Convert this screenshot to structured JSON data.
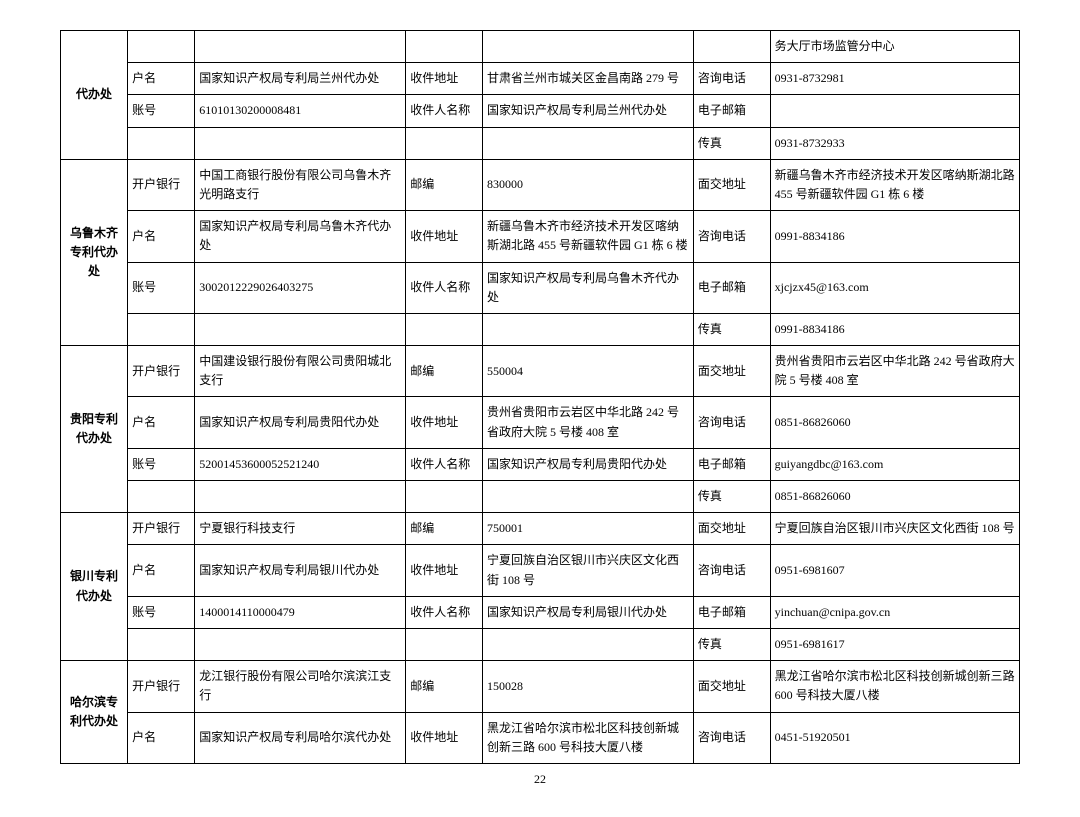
{
  "labels": {
    "bank": "开户银行",
    "accountName": "户名",
    "accountNo": "账号",
    "postcode": "邮编",
    "recvAddr": "收件地址",
    "recvName": "收件人名称",
    "inPersonAddr": "面交地址",
    "consultPhone": "咨询电话",
    "email": "电子邮箱",
    "fax": "传真"
  },
  "offices": [
    {
      "name": "代办处",
      "topRight": "务大厅市场监管分中心",
      "accountName": "国家知识产权局专利局兰州代办处",
      "accountNo": "61010130200008481",
      "recvAddr": "甘肃省兰州市城关区金昌南路 279 号",
      "recvName": "国家知识产权局专利局兰州代办处",
      "consultPhone": "0931-8732981",
      "fax": "0931-8732933"
    },
    {
      "name": "乌鲁木齐专利代办处",
      "bank": "中国工商银行股份有限公司乌鲁木齐光明路支行",
      "accountName": "国家知识产权局专利局乌鲁木齐代办处",
      "accountNo": "3002012229026403275",
      "postcode": "830000",
      "recvAddr": "新疆乌鲁木齐市经济技术开发区喀纳斯湖北路 455 号新疆软件园 G1 栋 6 楼",
      "recvName": "国家知识产权局专利局乌鲁木齐代办处",
      "inPersonAddr": "新疆乌鲁木齐市经济技术开发区喀纳斯湖北路 455 号新疆软件园 G1 栋 6 楼",
      "consultPhone": "0991-8834186",
      "email": "xjcjzx45@163.com",
      "fax": "0991-8834186"
    },
    {
      "name": "贵阳专利代办处",
      "bank": "中国建设银行股份有限公司贵阳城北支行",
      "accountName": "国家知识产权局专利局贵阳代办处",
      "accountNo": "52001453600052521240",
      "postcode": "550004",
      "recvAddr": "贵州省贵阳市云岩区中华北路 242 号省政府大院 5 号楼 408 室",
      "recvName": "国家知识产权局专利局贵阳代办处",
      "inPersonAddr": "贵州省贵阳市云岩区中华北路 242 号省政府大院 5 号楼 408 室",
      "consultPhone": "0851-86826060",
      "email": "guiyangdbc@163.com",
      "fax": "0851-86826060"
    },
    {
      "name": "银川专利代办处",
      "bank": "宁夏银行科技支行",
      "accountName": "国家知识产权局专利局银川代办处",
      "accountNo": "1400014110000479",
      "postcode": "750001",
      "recvAddr": "宁夏回族自治区银川市兴庆区文化西街 108 号",
      "recvName": "国家知识产权局专利局银川代办处",
      "inPersonAddr": "宁夏回族自治区银川市兴庆区文化西街 108 号",
      "consultPhone": "0951-6981607",
      "email": "yinchuan@cnipa.gov.cn",
      "fax": "0951-6981617"
    },
    {
      "name": "哈尔滨专利代办处",
      "bank": "龙江银行股份有限公司哈尔滨滨江支行",
      "accountName": "国家知识产权局专利局哈尔滨代办处",
      "postcode": "150028",
      "recvAddr": "黑龙江省哈尔滨市松北区科技创新城创新三路 600 号科技大厦八楼",
      "inPersonAddr": "黑龙江省哈尔滨市松北区科技创新城创新三路 600 号科技大厦八楼",
      "consultPhone": "0451-51920501"
    }
  ],
  "pageNumber": "22"
}
